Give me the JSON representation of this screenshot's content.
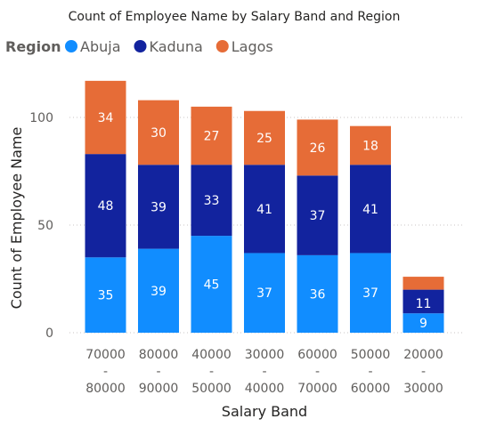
{
  "chart_data": {
    "type": "bar",
    "stacked": true,
    "title": "Count of Employee Name by Salary Band and Region",
    "xlabel": "Salary Band",
    "ylabel": "Count of Employee Name",
    "legend_title": "Region",
    "legend_position": "top-left",
    "ylim": [
      0,
      120
    ],
    "yticks": [
      0,
      50,
      100
    ],
    "grid": true,
    "categories": [
      [
        "70000",
        "-",
        "80000"
      ],
      [
        "80000",
        "-",
        "90000"
      ],
      [
        "40000",
        "-",
        "50000"
      ],
      [
        "30000",
        "-",
        "40000"
      ],
      [
        "60000",
        "-",
        "70000"
      ],
      [
        "50000",
        "-",
        "60000"
      ],
      [
        "20000",
        "-",
        "30000"
      ]
    ],
    "series": [
      {
        "name": "Abuja",
        "color": "#118DFF",
        "values": [
          35,
          39,
          45,
          37,
          36,
          37,
          9
        ]
      },
      {
        "name": "Kaduna",
        "color": "#12239E",
        "values": [
          48,
          39,
          33,
          41,
          37,
          41,
          11
        ]
      },
      {
        "name": "Lagos",
        "color": "#E66C37",
        "values": [
          34,
          30,
          27,
          25,
          26,
          18,
          6
        ]
      }
    ],
    "data_labels_hidden": [
      [
        2,
        6
      ]
    ]
  }
}
